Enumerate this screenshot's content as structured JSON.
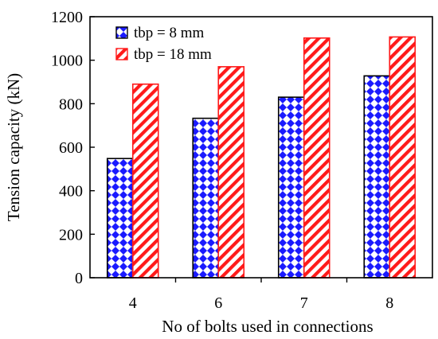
{
  "chart_data": {
    "type": "bar",
    "categories": [
      "4",
      "6",
      "7",
      "8"
    ],
    "series": [
      {
        "name": "tbp = 8 mm",
        "values": [
          548,
          733,
          830,
          928
        ],
        "color": "#1a1aff",
        "pattern": "checker"
      },
      {
        "name": "tbp = 18 mm",
        "values": [
          890,
          970,
          1102,
          1107
        ],
        "color": "#ff1a1a",
        "pattern": "hatch"
      }
    ],
    "xlabel": "No of bolts used in connections",
    "ylabel": "Tension capacity (kN)",
    "ylim": [
      0,
      1200
    ],
    "yticks": [
      0,
      200,
      400,
      600,
      800,
      1000,
      1200
    ],
    "grid": false,
    "legend_position": "top-left"
  }
}
